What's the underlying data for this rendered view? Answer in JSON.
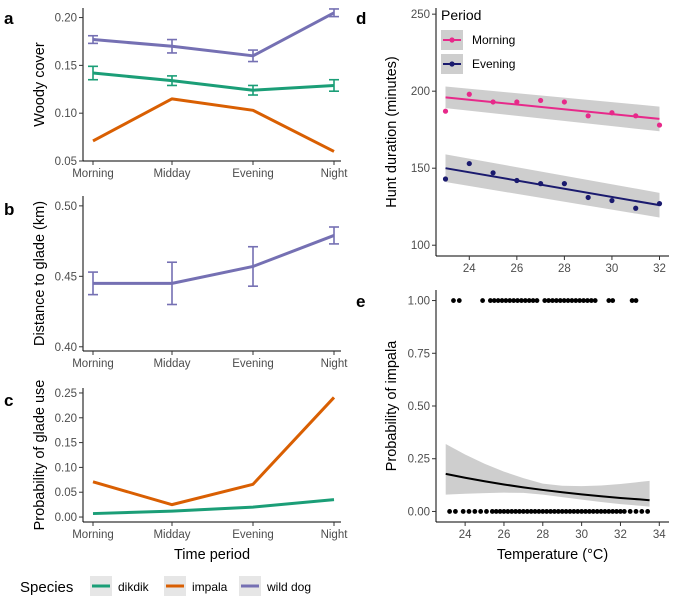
{
  "figure": {
    "colors": {
      "dikdik": "#1b9e77",
      "impala": "#d95f02",
      "wilddog": "#7570b3",
      "morning": "#e7298a",
      "evening": "#1a1a6e",
      "band": "#bdbdbd",
      "axis": "#333333"
    },
    "legend": {
      "title": "Species",
      "items": [
        {
          "label": "dikdik",
          "color": "#1b9e77"
        },
        {
          "label": "impala",
          "color": "#d95f02"
        },
        {
          "label": "wild dog",
          "color": "#7570b3"
        }
      ]
    }
  },
  "chart_data": [
    {
      "panel": "a",
      "type": "line",
      "xlabel": "",
      "ylabel": "Woody cover",
      "categories": [
        "Morning",
        "Midday",
        "Evening",
        "Night"
      ],
      "ylim": [
        0.05,
        0.21
      ],
      "yticks": [
        0.05,
        0.1,
        0.15,
        0.2
      ],
      "ytick_labels": [
        "0.05",
        "0.10",
        "0.15",
        "0.20"
      ],
      "series": [
        {
          "key": "dikdik",
          "values": [
            0.142,
            0.134,
            0.124,
            0.129
          ],
          "errors": [
            0.007,
            0.005,
            0.005,
            0.006
          ]
        },
        {
          "key": "impala",
          "values": [
            0.071,
            0.115,
            0.103,
            0.06
          ],
          "errors": null
        },
        {
          "key": "wilddog",
          "values": [
            0.177,
            0.17,
            0.16,
            0.205
          ],
          "errors": [
            0.004,
            0.007,
            0.006,
            0.004
          ]
        }
      ]
    },
    {
      "panel": "b",
      "type": "line",
      "xlabel": "",
      "ylabel": "Distance to glade (km)",
      "categories": [
        "Morning",
        "Midday",
        "Evening",
        "Night"
      ],
      "ylim": [
        0.397,
        0.507
      ],
      "yticks": [
        0.4,
        0.45,
        0.5
      ],
      "ytick_labels": [
        "0.40",
        "0.45",
        "0.50"
      ],
      "series": [
        {
          "key": "wilddog",
          "values": [
            0.445,
            0.445,
            0.457,
            0.479
          ],
          "errors": [
            0.008,
            0.015,
            0.014,
            0.006
          ]
        }
      ]
    },
    {
      "panel": "c",
      "type": "line",
      "xlabel": "Time period",
      "ylabel": "Probability of glade use",
      "categories": [
        "Morning",
        "Midday",
        "Evening",
        "Night"
      ],
      "ylim": [
        -0.01,
        0.26
      ],
      "yticks": [
        0.0,
        0.05,
        0.1,
        0.15,
        0.2,
        0.25
      ],
      "ytick_labels": [
        "0.00",
        "0.05",
        "0.10",
        "0.15",
        "0.20",
        "0.25"
      ],
      "series": [
        {
          "key": "impala",
          "values": [
            0.071,
            0.025,
            0.066,
            0.241
          ],
          "errors": null
        },
        {
          "key": "dikdik",
          "values": [
            0.007,
            0.012,
            0.02,
            0.035
          ],
          "errors": null
        }
      ]
    },
    {
      "panel": "d",
      "type": "scatter",
      "xlabel": "",
      "ylabel": "Hunt duration (minutes)",
      "xlim": [
        22.6,
        32.4
      ],
      "xticks": [
        24,
        26,
        28,
        30,
        32
      ],
      "ylim": [
        93,
        254
      ],
      "yticks": [
        100,
        150,
        200,
        250
      ],
      "legend_title": "Period",
      "series": [
        {
          "name": "Morning",
          "color": "#e7298a",
          "x": [
            23,
            24,
            25,
            26,
            27,
            28,
            29,
            30,
            31,
            32
          ],
          "y": [
            187,
            198,
            193,
            193,
            194,
            193,
            184,
            186,
            184,
            178
          ],
          "fit": {
            "x": [
              23,
              32
            ],
            "y": [
              196,
              182
            ]
          },
          "band": {
            "lower_start": 189,
            "lower_end": 174,
            "upper_start": 203,
            "upper_end": 190
          }
        },
        {
          "name": "Evening",
          "color": "#1a1a6e",
          "x": [
            23,
            24,
            25,
            26,
            27,
            28,
            29,
            30,
            31,
            32
          ],
          "y": [
            143,
            153,
            147,
            142,
            140,
            140,
            131,
            129,
            124,
            127
          ],
          "fit": {
            "x": [
              23,
              32
            ],
            "y": [
              150,
              126
            ]
          },
          "band": {
            "lower_start": 141,
            "lower_end": 118,
            "upper_start": 159,
            "upper_end": 134
          }
        }
      ]
    },
    {
      "panel": "e",
      "type": "scatter",
      "xlabel": "Temperature (°C)",
      "ylabel": "Probability of impala",
      "xlim": [
        22.5,
        34.5
      ],
      "xticks": [
        24,
        26,
        28,
        30,
        32,
        34
      ],
      "ylim": [
        -0.05,
        1.05
      ],
      "yticks": [
        0.0,
        0.25,
        0.5,
        0.75,
        1.0
      ],
      "ytick_labels": [
        "0.00",
        "0.25",
        "0.50",
        "0.75",
        "1.00"
      ],
      "points_one_x": [
        23.4,
        23.7,
        24.9,
        25.3,
        25.5,
        25.7,
        25.9,
        26.1,
        26.3,
        26.5,
        26.7,
        26.9,
        27.1,
        27.3,
        27.5,
        27.7,
        28.1,
        28.3,
        28.5,
        28.7,
        28.9,
        29.1,
        29.3,
        29.5,
        29.7,
        29.9,
        30.1,
        30.3,
        30.5,
        30.7,
        31.4,
        31.6,
        32.6,
        32.8
      ],
      "points_zero_x": [
        23.2,
        23.5,
        23.9,
        24.2,
        24.5,
        24.8,
        25.1,
        25.4,
        25.6,
        25.8,
        26.0,
        26.2,
        26.4,
        26.6,
        26.8,
        27.0,
        27.2,
        27.4,
        27.6,
        27.8,
        28.0,
        28.2,
        28.4,
        28.6,
        28.8,
        29.0,
        29.2,
        29.4,
        29.6,
        29.8,
        30.0,
        30.2,
        30.4,
        30.6,
        30.8,
        31.0,
        31.2,
        31.4,
        31.6,
        31.8,
        32.0,
        32.2,
        32.5,
        32.8,
        33.1,
        33.4
      ],
      "fit": {
        "x": [
          23,
          24,
          25,
          26,
          27,
          28,
          29,
          30,
          31,
          32,
          33,
          33.5
        ],
        "y": [
          0.178,
          0.16,
          0.143,
          0.128,
          0.114,
          0.102,
          0.091,
          0.081,
          0.072,
          0.064,
          0.057,
          0.053
        ],
        "lower": [
          0.08,
          0.084,
          0.087,
          0.089,
          0.088,
          0.08,
          0.068,
          0.056,
          0.045,
          0.035,
          0.027,
          0.023
        ],
        "upper": [
          0.32,
          0.27,
          0.226,
          0.189,
          0.158,
          0.132,
          0.122,
          0.12,
          0.123,
          0.13,
          0.14,
          0.145
        ]
      }
    }
  ]
}
